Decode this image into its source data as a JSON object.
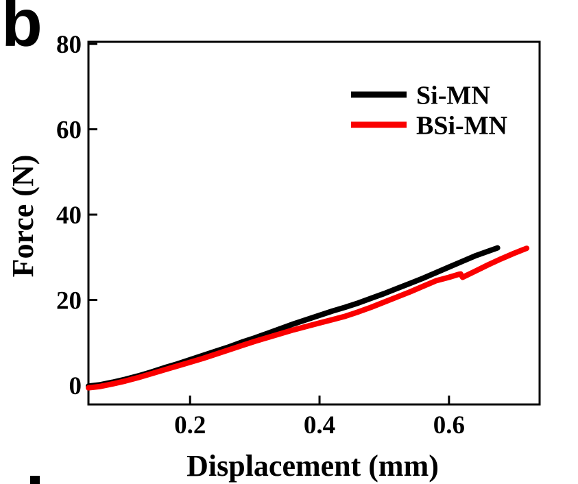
{
  "panel": {
    "label": "b"
  },
  "figure": {
    "black": "#000000",
    "accent_red": "#fa0000"
  },
  "chart_data": {
    "type": "line",
    "title": "",
    "xlabel": "Displacement (mm)",
    "ylabel": "Force (N)",
    "xlim": [
      0.043,
      0.74
    ],
    "ylim": [
      -4.5,
      80.5
    ],
    "xticks": [
      0.2,
      0.4,
      0.6
    ],
    "yticks": [
      0,
      20,
      40,
      60,
      80
    ],
    "xtick_labels": [
      "0.2",
      "0.4",
      "0.6"
    ],
    "ytick_labels": [
      "0",
      "20",
      "40",
      "60",
      "80"
    ],
    "grid": false,
    "legend_position": "upper-right-inside",
    "series": [
      {
        "name": "Si-MN",
        "color": "#000000",
        "points": [
          [
            0.043,
            -0.2
          ],
          [
            0.06,
            0.1
          ],
          [
            0.08,
            0.7
          ],
          [
            0.1,
            1.4
          ],
          [
            0.12,
            2.2
          ],
          [
            0.14,
            3.1
          ],
          [
            0.16,
            4.1
          ],
          [
            0.18,
            5.0
          ],
          [
            0.2,
            6.0
          ],
          [
            0.22,
            7.0
          ],
          [
            0.24,
            8.0
          ],
          [
            0.26,
            9.0
          ],
          [
            0.28,
            10.1
          ],
          [
            0.3,
            11.1
          ],
          [
            0.32,
            12.2
          ],
          [
            0.34,
            13.3
          ],
          [
            0.36,
            14.4
          ],
          [
            0.38,
            15.4
          ],
          [
            0.4,
            16.4
          ],
          [
            0.42,
            17.4
          ],
          [
            0.44,
            18.3
          ],
          [
            0.46,
            19.3
          ],
          [
            0.48,
            20.4
          ],
          [
            0.5,
            21.5
          ],
          [
            0.52,
            22.7
          ],
          [
            0.54,
            23.9
          ],
          [
            0.56,
            25.1
          ],
          [
            0.58,
            26.4
          ],
          [
            0.6,
            27.7
          ],
          [
            0.62,
            29.0
          ],
          [
            0.64,
            30.3
          ],
          [
            0.66,
            31.4
          ],
          [
            0.675,
            32.2
          ]
        ]
      },
      {
        "name": "BSi-MN",
        "color": "#fa0000",
        "points": [
          [
            0.043,
            -0.6
          ],
          [
            0.06,
            -0.3
          ],
          [
            0.08,
            0.3
          ],
          [
            0.1,
            1.0
          ],
          [
            0.12,
            1.8
          ],
          [
            0.14,
            2.7
          ],
          [
            0.16,
            3.6
          ],
          [
            0.18,
            4.5
          ],
          [
            0.2,
            5.4
          ],
          [
            0.22,
            6.3
          ],
          [
            0.24,
            7.3
          ],
          [
            0.26,
            8.3
          ],
          [
            0.28,
            9.3
          ],
          [
            0.3,
            10.3
          ],
          [
            0.32,
            11.2
          ],
          [
            0.34,
            12.1
          ],
          [
            0.36,
            13.0
          ],
          [
            0.38,
            13.8
          ],
          [
            0.4,
            14.6
          ],
          [
            0.42,
            15.4
          ],
          [
            0.44,
            16.2
          ],
          [
            0.46,
            17.2
          ],
          [
            0.48,
            18.3
          ],
          [
            0.5,
            19.5
          ],
          [
            0.52,
            20.7
          ],
          [
            0.54,
            21.9
          ],
          [
            0.56,
            23.2
          ],
          [
            0.58,
            24.5
          ],
          [
            0.6,
            25.3
          ],
          [
            0.615,
            26.0
          ],
          [
            0.618,
            26.1
          ],
          [
            0.621,
            25.3
          ],
          [
            0.64,
            26.7
          ],
          [
            0.66,
            28.2
          ],
          [
            0.68,
            29.6
          ],
          [
            0.7,
            30.9
          ],
          [
            0.72,
            32.1
          ]
        ]
      }
    ]
  }
}
